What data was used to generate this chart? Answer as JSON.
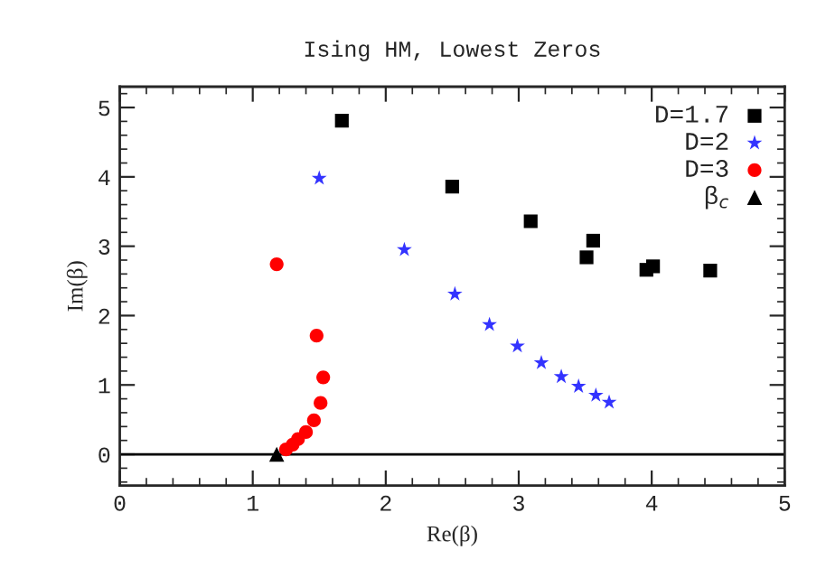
{
  "chart_data": {
    "type": "scatter",
    "title": "Ising HM, Lowest Zeros",
    "xlabel": "Re(β)",
    "ylabel": "Im(β)",
    "xlim": [
      0,
      5
    ],
    "ylim": [
      -0.45,
      5.3
    ],
    "xticks": [
      0,
      1,
      2,
      3,
      4,
      5
    ],
    "yticks": [
      0,
      1,
      2,
      3,
      4,
      5
    ],
    "grid": false,
    "legend": "top right",
    "ref_lines": [
      {
        "axis": "y",
        "value": 0,
        "color": "#000000"
      }
    ],
    "series": [
      {
        "name": "D=1.7",
        "color": "#000000",
        "marker": "square",
        "x": [
          1.67,
          2.5,
          3.09,
          3.56,
          3.51,
          3.96,
          4.01,
          4.44
        ],
        "values": [
          4.81,
          3.86,
          3.36,
          3.08,
          2.84,
          2.66,
          2.71,
          2.65
        ]
      },
      {
        "name": "D=2",
        "color": "#3333ff",
        "marker": "star",
        "x": [
          1.5,
          2.14,
          2.52,
          2.78,
          2.99,
          3.17,
          3.32,
          3.45,
          3.58,
          3.68
        ],
        "values": [
          3.98,
          2.95,
          2.31,
          1.87,
          1.56,
          1.32,
          1.12,
          0.98,
          0.85,
          0.75
        ]
      },
      {
        "name": "D=3",
        "color": "#ff0000",
        "marker": "circle",
        "x": [
          1.18,
          1.48,
          1.53,
          1.51,
          1.46,
          1.4,
          1.34,
          1.3,
          1.25
        ],
        "values": [
          2.74,
          1.71,
          1.11,
          0.74,
          0.49,
          0.32,
          0.22,
          0.14,
          0.07
        ]
      },
      {
        "name": "β$_{c}$",
        "color": "#000000",
        "marker": "triangle",
        "x": [
          1.18
        ],
        "values": [
          0
        ]
      }
    ]
  }
}
